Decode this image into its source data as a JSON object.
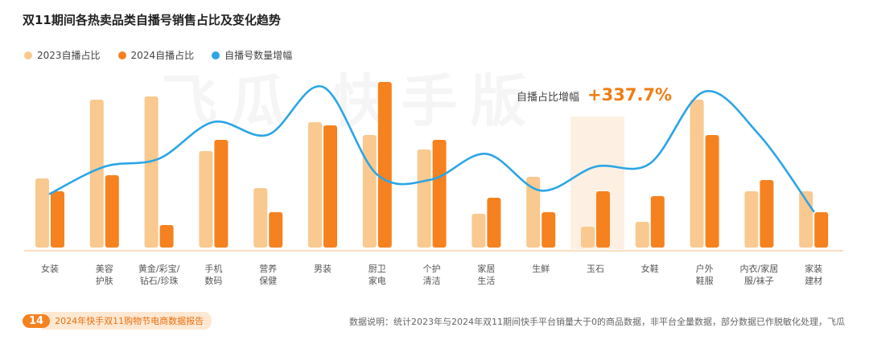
{
  "title": "双11期间各热卖品类自播号销售占比及变化趋势",
  "watermark": "飞瓜 快手版",
  "legend": [
    {
      "label": "2023自播占比",
      "color": "#f9c98f"
    },
    {
      "label": "2024自播占比",
      "color": "#f5821f"
    },
    {
      "label": "自播号数量增幅",
      "color": "#2ba5e6"
    }
  ],
  "callout": {
    "label": "自播占比增幅",
    "value": "+337.7%"
  },
  "chart_data": {
    "type": "bar",
    "categories": [
      [
        "女装"
      ],
      [
        "美容",
        "护肤"
      ],
      [
        "黄金/彩宝/",
        "钻石/珍珠"
      ],
      [
        "手机",
        "数码"
      ],
      [
        "营养",
        "保健"
      ],
      [
        "男装"
      ],
      [
        "厨卫",
        "家电"
      ],
      [
        "个护",
        "清洁"
      ],
      [
        "家居",
        "生活"
      ],
      [
        "生鲜"
      ],
      [
        "玉石"
      ],
      [
        "女鞋"
      ],
      [
        "户外",
        "鞋服"
      ],
      [
        "内衣/家居",
        "服/袜子"
      ],
      [
        "家装",
        "建材"
      ]
    ],
    "series": [
      {
        "name": "2023自播占比",
        "values": [
          0.43,
          0.92,
          0.94,
          0.6,
          0.37,
          0.78,
          0.7,
          0.61,
          0.21,
          0.44,
          0.13,
          0.16,
          0.92,
          0.35,
          0.35
        ]
      },
      {
        "name": "2024自播占比",
        "values": [
          0.35,
          0.45,
          0.14,
          0.67,
          0.22,
          0.76,
          1.03,
          0.67,
          0.31,
          0.22,
          0.35,
          0.32,
          0.7,
          0.42,
          0.22
        ]
      },
      {
        "name": "自播号数量增幅",
        "values": [
          0.33,
          0.5,
          0.55,
          0.78,
          0.7,
          1.0,
          0.45,
          0.42,
          0.58,
          0.35,
          0.5,
          0.52,
          0.97,
          0.7,
          0.22
        ]
      }
    ],
    "highlight_category": "玉石",
    "axes_visible": false
  },
  "footer": {
    "page_number": "14",
    "report_name": "2024年快手双11购物节电商数据报告",
    "note": "数据说明：统计2023年与2024年双11期间快手平台销量大于0的商品数据，非平台全量数据，部分数据已作脱敏化处理，飞瓜"
  }
}
